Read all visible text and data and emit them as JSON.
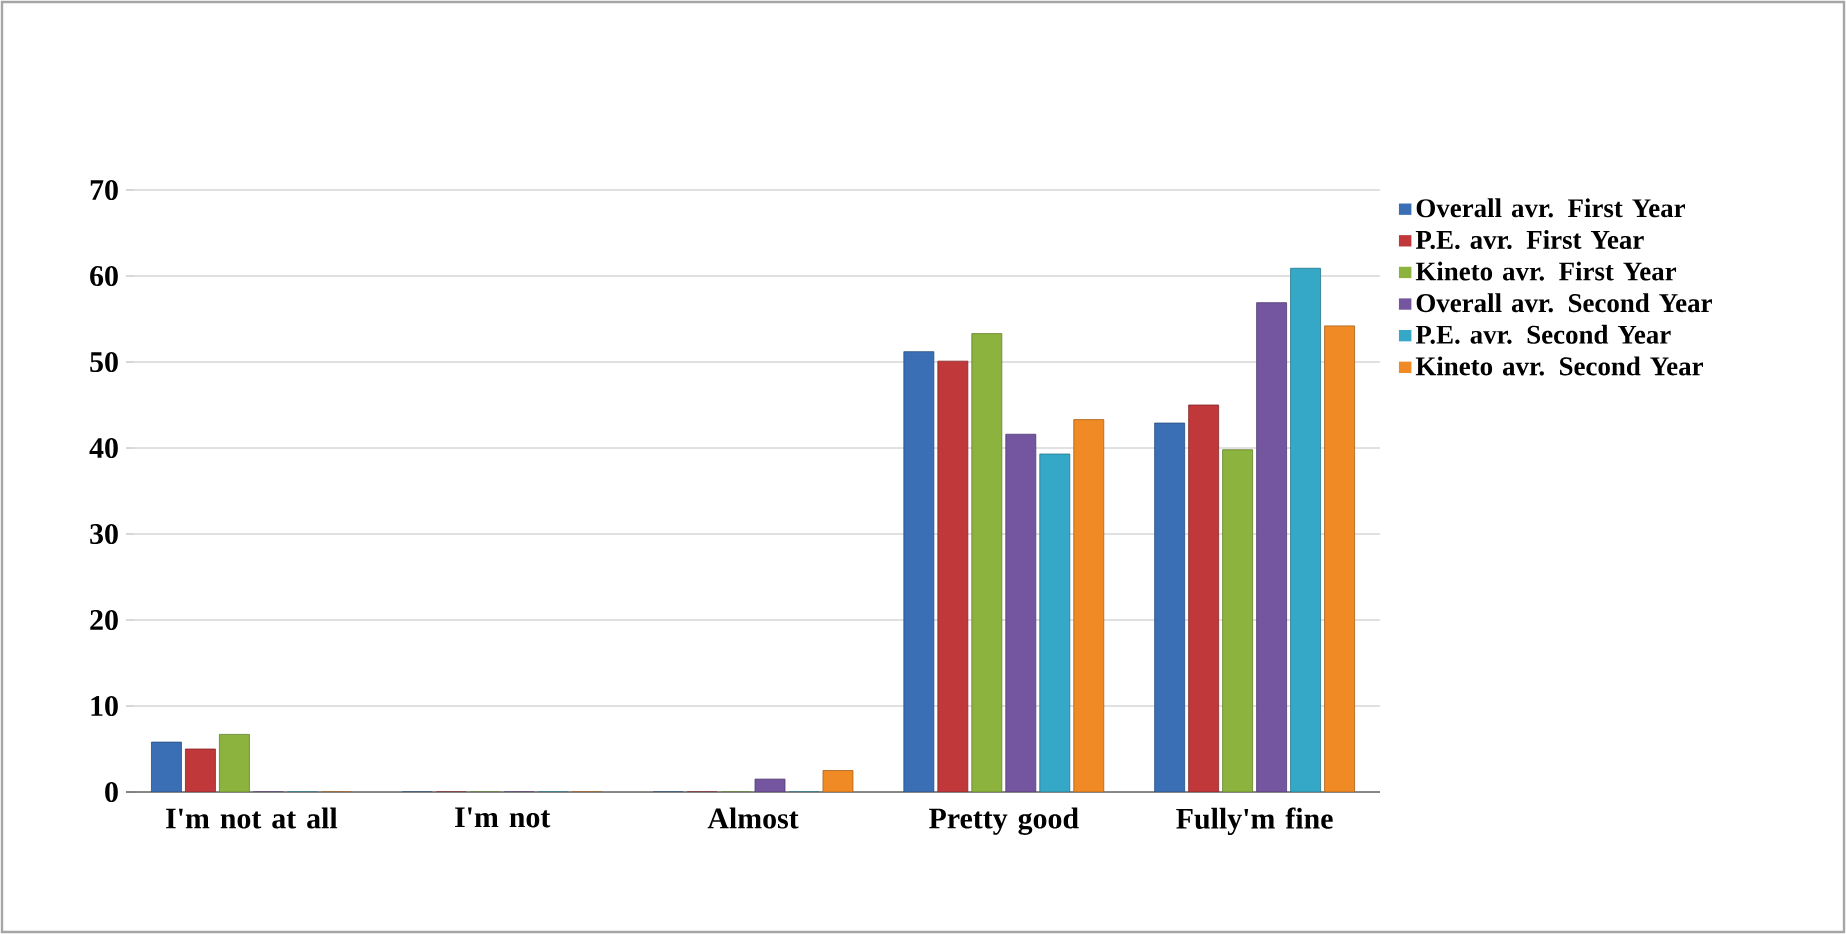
{
  "chart_data": {
    "type": "bar",
    "categories": [
      "I'm not at all",
      "I'm not",
      "Almost",
      "Pretty good",
      "Fully'm fine"
    ],
    "series": [
      {
        "name": "Overall avr. First Year",
        "color": "#3a6fb5",
        "values": [
          5.8,
          0,
          0,
          51.2,
          42.9
        ]
      },
      {
        "name": "P.E. avr. First Year",
        "color": "#c0383a",
        "values": [
          5.0,
          0,
          0,
          50.1,
          45.0
        ]
      },
      {
        "name": "Kineto avr. First Year",
        "color": "#8db33f",
        "values": [
          6.7,
          0,
          0,
          53.3,
          39.8
        ]
      },
      {
        "name": "Overall avr. Second Year",
        "color": "#7455a0",
        "values": [
          0,
          0,
          1.5,
          41.6,
          56.9
        ]
      },
      {
        "name": "P.E. avr. Second Year",
        "color": "#35a8c8",
        "values": [
          0,
          0,
          0,
          39.3,
          60.9
        ]
      },
      {
        "name": "Kineto avr. Second Year",
        "color": "#f08a24",
        "values": [
          0,
          0,
          2.5,
          43.3,
          54.2
        ]
      }
    ],
    "ylim": [
      0,
      70
    ],
    "yticks": [
      0,
      10,
      20,
      30,
      40,
      50,
      60,
      70
    ],
    "grid": "y",
    "legend": "right"
  }
}
